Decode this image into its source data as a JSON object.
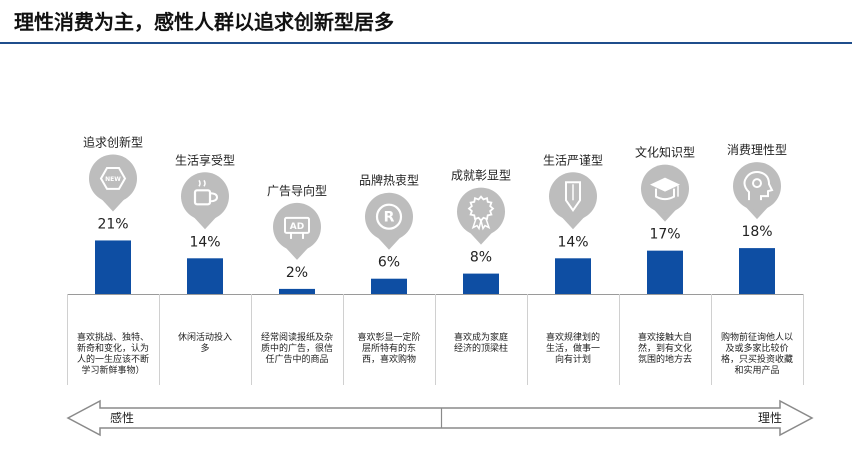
{
  "title": "理性消费为主，感性人群以追求创新型居多",
  "chart_data": {
    "type": "bar",
    "categories": [
      "追求创新型",
      "生活享受型",
      "广告导向型",
      "品牌热衷型",
      "成就彰显型",
      "生活严谨型",
      "文化知识型",
      "消费理性型"
    ],
    "values": [
      21,
      14,
      2,
      6,
      8,
      14,
      17,
      18
    ],
    "value_labels": [
      "21%",
      "14%",
      "2%",
      "6%",
      "8%",
      "14%",
      "17%",
      "18%"
    ],
    "unit": "%",
    "icons": [
      "new-badge-icon",
      "coffee-cup-icon",
      "ad-sign-icon",
      "registered-trademark-icon",
      "award-rosette-icon",
      "pencil-icon",
      "graduation-cap-icon",
      "gear-head-icon"
    ],
    "descriptions": [
      [
        "喜欢挑战、独特、",
        "新奇和变化，认为",
        "人的一生应该不断",
        "学习新鲜事物）"
      ],
      [
        "休闲活动投入",
        "多"
      ],
      [
        "经常阅读报纸及杂",
        "质中的广告，很信",
        "任广告中的商品"
      ],
      [
        "喜欢彰显一定阶",
        "层所特有的东",
        "西，喜欢购物"
      ],
      [
        "喜欢成为家庭",
        "经济的顶梁柱"
      ],
      [
        "喜欢规律划的",
        "生活，做事一",
        "向有计划"
      ],
      [
        "喜欢接触大自",
        "然，到有文化",
        "氛围的地方去"
      ],
      [
        "购物前征询他人以",
        "及或多家比较价",
        "格，只买投资收藏",
        "和实用产品"
      ]
    ],
    "bar_color": "#0e4ea3",
    "icon_color": "#bdbdbd",
    "axis": {
      "left_label": "感性",
      "right_label": "理性"
    }
  }
}
